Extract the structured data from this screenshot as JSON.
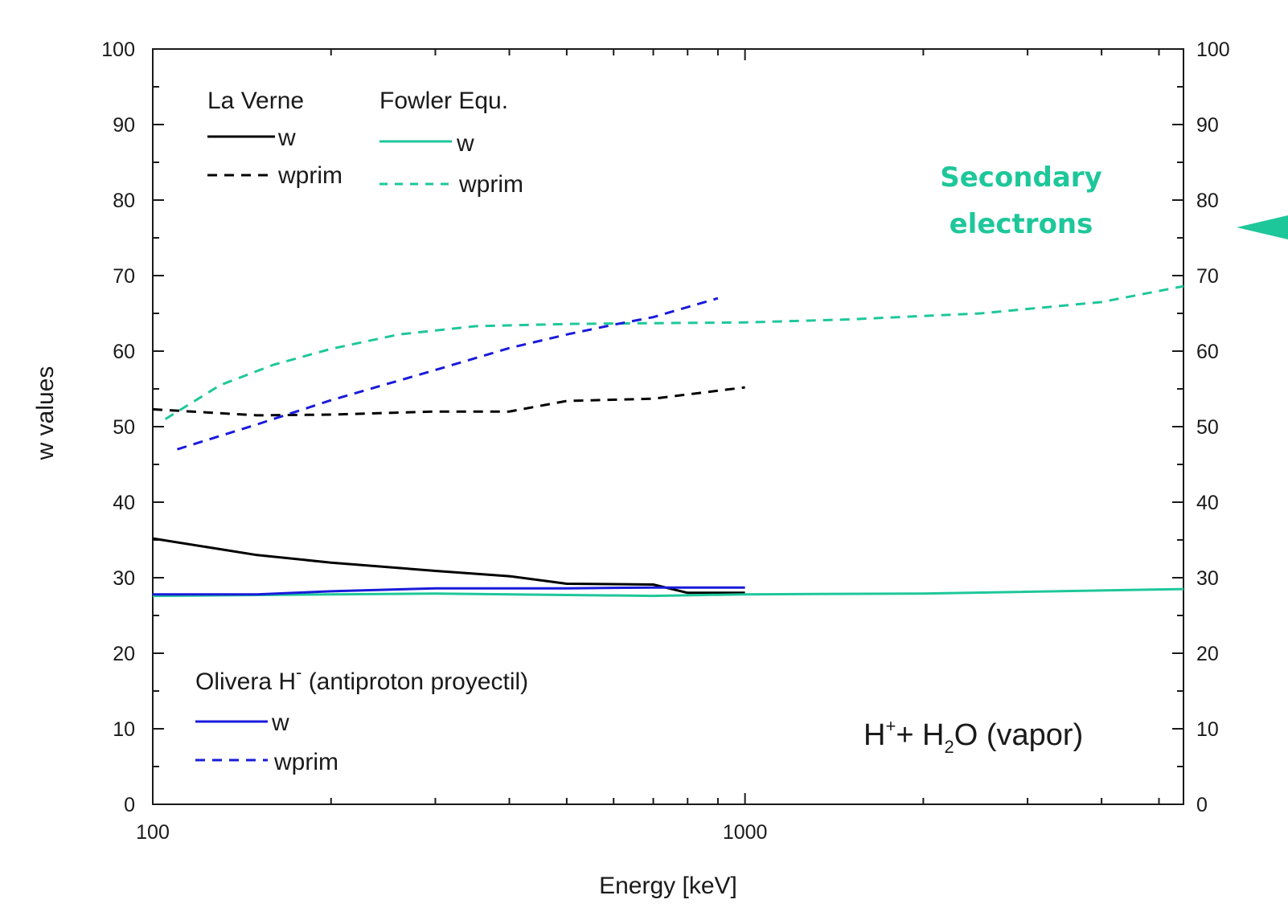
{
  "chart_data": {
    "type": "line",
    "xlabel": "Energy [keV]",
    "ylabel": "w values",
    "xscale": "log",
    "xlim": [
      100,
      5500
    ],
    "ylim": [
      0,
      100
    ],
    "x_ticks": [
      100,
      1000
    ],
    "y_ticks": [
      0,
      10,
      20,
      30,
      40,
      50,
      60,
      70,
      80,
      90,
      100
    ],
    "right_axis_ticks": [
      0,
      10,
      20,
      30,
      40,
      50,
      60,
      70,
      80,
      90,
      100
    ],
    "grid": false,
    "colors": {
      "la_verne": "#000000",
      "fowler": "#1ec79a",
      "olivera": "#1a1adb",
      "annotation": "#1ec79a"
    },
    "legend_groups": {
      "la_verne": {
        "title": "La Verne",
        "w": "w",
        "wprim": "wprim"
      },
      "fowler": {
        "title": "Fowler Equ.",
        "w": "w",
        "wprim": "wprim"
      },
      "olivera": {
        "title_main": "Olivera H",
        "title_sup": "-",
        "title_rest": " (antiproton proyectil)",
        "w": "w",
        "wprim": "wprim"
      }
    },
    "annotations": {
      "secondary_line1": "Secondary",
      "secondary_line2": "electrons",
      "reaction_h": "H",
      "reaction_sup": "+",
      "reaction_mid": "+ H",
      "reaction_sub": "2",
      "reaction_end": "O (vapor)"
    },
    "series": [
      {
        "key": "la_verne_w",
        "group": "la_verne",
        "style": "solid",
        "x": [
          100,
          150,
          200,
          300,
          400,
          500,
          700,
          800,
          1000
        ],
        "y": [
          35.2,
          33.0,
          32.0,
          30.9,
          30.2,
          29.2,
          29.1,
          28.0,
          28.0
        ]
      },
      {
        "key": "la_verne_wprim",
        "group": "la_verne",
        "style": "dashed",
        "x": [
          100,
          150,
          200,
          300,
          400,
          500,
          700,
          1000
        ],
        "y": [
          52.3,
          51.5,
          51.6,
          52.0,
          52.0,
          53.4,
          53.7,
          55.2
        ]
      },
      {
        "key": "fowler_w",
        "group": "fowler",
        "style": "solid",
        "x": [
          100,
          300,
          700,
          1000,
          2000,
          5500
        ],
        "y": [
          27.6,
          27.9,
          27.6,
          27.8,
          27.9,
          28.5
        ]
      },
      {
        "key": "fowler_wprim",
        "group": "fowler",
        "style": "dashed",
        "x": [
          105,
          130,
          160,
          200,
          260,
          350,
          500,
          700,
          1000,
          1500,
          2500,
          4000,
          5500
        ],
        "y": [
          51.0,
          55.5,
          58.2,
          60.3,
          62.2,
          63.3,
          63.6,
          63.7,
          63.8,
          64.2,
          65.0,
          66.5,
          68.6
        ]
      },
      {
        "key": "olivera_w",
        "group": "olivera",
        "style": "solid",
        "x": [
          100,
          150,
          200,
          300,
          500,
          700,
          1000
        ],
        "y": [
          27.8,
          27.8,
          28.2,
          28.6,
          28.6,
          28.7,
          28.7
        ]
      },
      {
        "key": "olivera_wprim",
        "group": "olivera",
        "style": "dashed",
        "x": [
          110,
          150,
          200,
          300,
          400,
          500,
          600,
          700,
          900
        ],
        "y": [
          47.0,
          50.3,
          53.5,
          57.5,
          60.4,
          62.2,
          63.5,
          64.5,
          67.0
        ]
      }
    ]
  }
}
